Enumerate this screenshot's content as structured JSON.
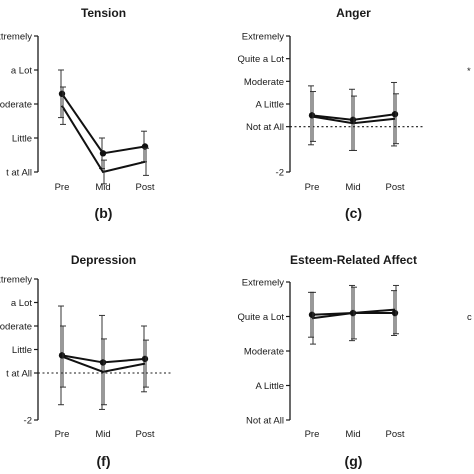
{
  "stray_labels": {
    "top_right": "*",
    "mid_right": "c"
  },
  "chart_data": [
    {
      "type": "line",
      "title": "Tension",
      "panel_label": "(b)",
      "categories": [
        "Pre",
        "Mid",
        "Post"
      ],
      "y_tick_labels": [
        "Not at All",
        "A Little",
        "Moderate",
        "Quite a Lot",
        "Extremely"
      ],
      "y_tick_label_display": [
        "t at All",
        "Little",
        "oderate",
        "a Lot",
        "xtremely"
      ],
      "ylim": [
        0,
        4
      ],
      "reference_zero_line": false,
      "series": [
        {
          "values": [
            2.3,
            0.55,
            0.75
          ],
          "error": [
            0.7,
            0.45,
            0.45
          ],
          "marker": "circle"
        },
        {
          "values": [
            1.95,
            0.0,
            0.3
          ],
          "error": [
            0.55,
            0.35,
            0.4
          ],
          "marker": "none"
        }
      ]
    },
    {
      "type": "line",
      "title": "Anger",
      "panel_label": "(c)",
      "categories": [
        "Pre",
        "Mid",
        "Post"
      ],
      "y_tick_labels": [
        "-2",
        "Not at All",
        "A Little",
        "Moderate",
        "Quite a Lot",
        "Extremely"
      ],
      "y_tick_label_display": [
        "-2",
        "Not at All",
        "A Little",
        "Moderate",
        "Quite a Lot",
        "Extremely"
      ],
      "y_tick_values": [
        -2,
        0,
        1,
        2,
        3,
        4
      ],
      "ylim": [
        -2,
        4
      ],
      "reference_zero_line": true,
      "series": [
        {
          "values": [
            0.5,
            0.3,
            0.55
          ],
          "error": [
            1.3,
            1.35,
            1.4
          ],
          "marker": "circle"
        },
        {
          "values": [
            0.45,
            0.15,
            0.35
          ],
          "error": [
            1.1,
            1.2,
            1.1
          ],
          "marker": "none"
        }
      ]
    },
    {
      "type": "line",
      "title": "Depression",
      "panel_label": "(f)",
      "categories": [
        "Pre",
        "Mid",
        "Post"
      ],
      "y_tick_labels": [
        "-2",
        "Not at All",
        "A Little",
        "Moderate",
        "Quite a Lot",
        "Extremely"
      ],
      "y_tick_label_display": [
        "-2",
        "t at All",
        "Little",
        "oderate",
        "a Lot",
        "xtremely"
      ],
      "y_tick_values": [
        -2,
        0,
        1,
        2,
        3,
        4
      ],
      "ylim": [
        -2,
        4
      ],
      "reference_zero_line": true,
      "series": [
        {
          "values": [
            0.75,
            0.45,
            0.6
          ],
          "error": [
            2.1,
            2.0,
            1.4
          ],
          "marker": "circle"
        },
        {
          "values": [
            0.7,
            0.05,
            0.4
          ],
          "error": [
            1.3,
            1.4,
            1.0
          ],
          "marker": "none"
        }
      ]
    },
    {
      "type": "line",
      "title": "Esteem-Related Affect",
      "panel_label": "(g)",
      "categories": [
        "Pre",
        "Mid",
        "Post"
      ],
      "y_tick_labels": [
        "Not at All",
        "A Little",
        "Moderate",
        "Quite a Lot",
        "Extremely"
      ],
      "y_tick_label_display": [
        "Not at All",
        "A Little",
        "Moderate",
        "Quite a Lot",
        "Extremely"
      ],
      "ylim": [
        0,
        4
      ],
      "reference_zero_line": false,
      "series": [
        {
          "values": [
            3.05,
            3.1,
            3.1
          ],
          "error": [
            0.65,
            0.8,
            0.65
          ],
          "marker": "circle"
        },
        {
          "values": [
            2.95,
            3.1,
            3.2
          ],
          "error": [
            0.75,
            0.75,
            0.7
          ],
          "marker": "none"
        }
      ]
    }
  ]
}
